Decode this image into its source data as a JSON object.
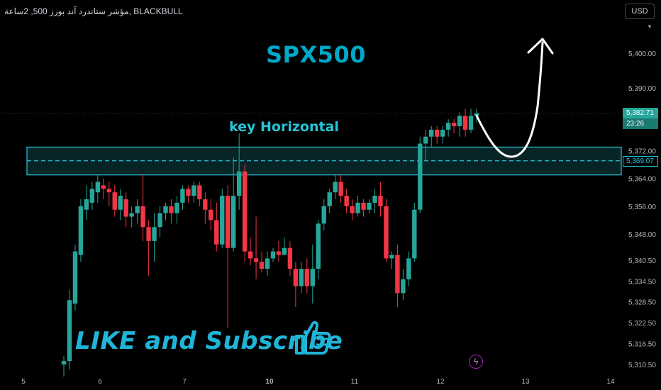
{
  "header": {
    "symbol_line": "مؤشر ستاندرد آند بورز 500, 2ساعة, BLACKBULL"
  },
  "currency_button": {
    "label": "USD"
  },
  "annotations": {
    "title": "SPX500",
    "zone_label": "key Horizontal",
    "cta": "LIKE and Subscribe"
  },
  "price_badge": {
    "price": "5,382.71",
    "countdown": "23:26"
  },
  "level_badge": {
    "price": "5,369.07"
  },
  "colors": {
    "up": "#26a69a",
    "down": "#f23645",
    "zone": "#26c6da",
    "title": "#00a8c8",
    "bg": "#000000"
  },
  "icons": [
    "thumbs-up-icon",
    "lightning-icon",
    "caret-down-icon"
  ],
  "chart_data": {
    "type": "candlestick",
    "y_axis": {
      "ticks": [
        5400.0,
        5390.0,
        5372.0,
        5364.0,
        5356.0,
        5348.0,
        5340.5,
        5334.5,
        5328.5,
        5322.5,
        5316.5,
        5310.5
      ]
    },
    "x_axis": {
      "ticks": [
        "5",
        "6",
        "7",
        "10",
        "11",
        "12",
        "13",
        "14"
      ]
    },
    "last_price": 5382.71,
    "key_level": 5369.07,
    "zone": {
      "top": 5373.0,
      "bottom": 5365.0
    },
    "candles": [
      [
        5310.5,
        5311.5,
        5307,
        5313
      ],
      [
        5311.5,
        5329,
        5309,
        5332
      ],
      [
        5328,
        5343,
        5326,
        5345
      ],
      [
        5342,
        5356,
        5340,
        5358
      ],
      [
        5355,
        5358,
        5352,
        5362
      ],
      [
        5357,
        5361,
        5355,
        5363
      ],
      [
        5360,
        5363,
        5357,
        5365
      ],
      [
        5362,
        5361,
        5358,
        5364
      ],
      [
        5361,
        5360,
        5356,
        5363
      ],
      [
        5360,
        5355,
        5353,
        5362
      ],
      [
        5355,
        5359,
        5352,
        5361
      ],
      [
        5358,
        5353,
        5350,
        5360
      ],
      [
        5353,
        5354,
        5350,
        5356
      ],
      [
        5354,
        5356,
        5351,
        5358
      ],
      [
        5356,
        5350,
        5346,
        5365
      ],
      [
        5350,
        5346,
        5336,
        5352
      ],
      [
        5346,
        5350,
        5340,
        5354
      ],
      [
        5350,
        5354,
        5347,
        5356
      ],
      [
        5354,
        5356,
        5352,
        5357
      ],
      [
        5356,
        5354,
        5351,
        5358
      ],
      [
        5354,
        5357,
        5351,
        5359
      ],
      [
        5357,
        5361,
        5355,
        5362
      ],
      [
        5361,
        5359,
        5357,
        5362
      ],
      [
        5359,
        5362,
        5357,
        5363
      ],
      [
        5362,
        5358,
        5356,
        5363
      ],
      [
        5358,
        5355,
        5351,
        5360
      ],
      [
        5355,
        5352,
        5349,
        5358
      ],
      [
        5352,
        5345,
        5343,
        5357
      ],
      [
        5345,
        5359,
        5344,
        5361
      ],
      [
        5359,
        5344,
        5321,
        5362
      ],
      [
        5344,
        5359,
        5343,
        5370
      ],
      [
        5359,
        5366,
        5355,
        5377
      ],
      [
        5366,
        5343,
        5340,
        5368
      ],
      [
        5343,
        5341,
        5339,
        5347
      ],
      [
        5341,
        5340,
        5335,
        5353
      ],
      [
        5340,
        5338,
        5337,
        5343
      ],
      [
        5338,
        5341,
        5336,
        5343
      ],
      [
        5341,
        5343,
        5340,
        5344
      ],
      [
        5343,
        5342,
        5340,
        5346
      ],
      [
        5342,
        5344,
        5342,
        5347
      ],
      [
        5344,
        5338,
        5336,
        5346
      ],
      [
        5338,
        5333,
        5327,
        5340
      ],
      [
        5333,
        5338,
        5331,
        5340
      ],
      [
        5338,
        5333,
        5331,
        5341
      ],
      [
        5333,
        5338,
        5328,
        5345
      ],
      [
        5338,
        5351,
        5335,
        5352
      ],
      [
        5351,
        5356,
        5349,
        5358
      ],
      [
        5356,
        5360,
        5354,
        5361
      ],
      [
        5360,
        5363,
        5358,
        5365
      ],
      [
        5363,
        5359,
        5357,
        5365
      ],
      [
        5359,
        5356,
        5354,
        5361
      ],
      [
        5356,
        5354,
        5352,
        5358
      ],
      [
        5354,
        5357,
        5353,
        5359
      ],
      [
        5357,
        5355,
        5353,
        5358
      ],
      [
        5355,
        5357,
        5354,
        5358
      ],
      [
        5357,
        5359,
        5354,
        5361
      ],
      [
        5359,
        5356,
        5353,
        5363
      ],
      [
        5356,
        5341,
        5340,
        5358
      ],
      [
        5341,
        5342,
        5338,
        5343
      ],
      [
        5342,
        5331,
        5327,
        5345
      ],
      [
        5331,
        5335,
        5329,
        5338
      ],
      [
        5335,
        5341,
        5333,
        5343
      ],
      [
        5341,
        5355,
        5340,
        5357
      ],
      [
        5355,
        5374,
        5354,
        5376
      ],
      [
        5374,
        5376,
        5369,
        5378
      ],
      [
        5376,
        5378,
        5373,
        5379
      ],
      [
        5378,
        5376,
        5374,
        5379
      ],
      [
        5376,
        5378,
        5374,
        5379
      ],
      [
        5378,
        5380,
        5376,
        5381
      ],
      [
        5380,
        5379,
        5377,
        5381
      ],
      [
        5379,
        5382,
        5376,
        5383
      ],
      [
        5382,
        5378,
        5376,
        5384
      ],
      [
        5378,
        5382,
        5377,
        5384
      ],
      [
        5382,
        5382.7,
        5380,
        5384
      ]
    ]
  }
}
